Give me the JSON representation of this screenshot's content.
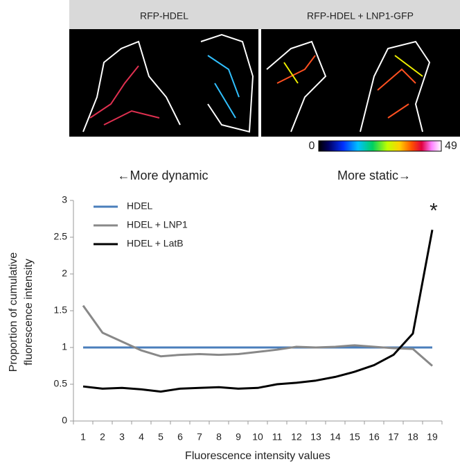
{
  "figure": {
    "panels": [
      "RFP-HDEL",
      "RFP-HDEL + LNP1-GFP"
    ],
    "colorbar": [
      "0",
      "49"
    ],
    "arrows": [
      "←More dynamic",
      "More static→"
    ]
  },
  "chart_data": {
    "type": "line",
    "ylabel": [
      "Proportion of cumulative",
      "fluorescence intensity"
    ],
    "xlabel": "Fluorescence intensity values",
    "categories": [
      "1",
      "2",
      "3",
      "4",
      "5",
      "6",
      "7",
      "8",
      "9",
      "10",
      "11",
      "12",
      "13",
      "14",
      "15",
      "16",
      "17",
      "18",
      "19"
    ],
    "series": [
      {
        "name": "HDEL",
        "color": "#4a7ebb",
        "values": [
          1,
          1,
          1,
          1,
          1,
          1,
          1,
          1,
          1,
          1,
          1,
          1,
          1,
          1,
          1,
          1,
          1,
          1,
          1
        ]
      },
      {
        "name": "HDEL + LNP1",
        "color": "#888888",
        "values": [
          1.57,
          1.2,
          1.08,
          0.96,
          0.88,
          0.9,
          0.91,
          0.9,
          0.91,
          0.94,
          0.97,
          1.01,
          1.0,
          1.01,
          1.03,
          1.01,
          0.99,
          0.98,
          0.75
        ]
      },
      {
        "name": "HDEL + LatB",
        "color": "#000000",
        "values": [
          0.47,
          0.44,
          0.45,
          0.43,
          0.4,
          0.44,
          0.45,
          0.46,
          0.44,
          0.45,
          0.5,
          0.52,
          0.55,
          0.6,
          0.67,
          0.76,
          0.9,
          1.19,
          2.6
        ]
      }
    ],
    "annotations": [
      "*"
    ],
    "ylim": [
      0,
      3
    ],
    "yticks": [
      0,
      0.5,
      1,
      1.5,
      2,
      2.5,
      3
    ],
    "grid": false
  }
}
